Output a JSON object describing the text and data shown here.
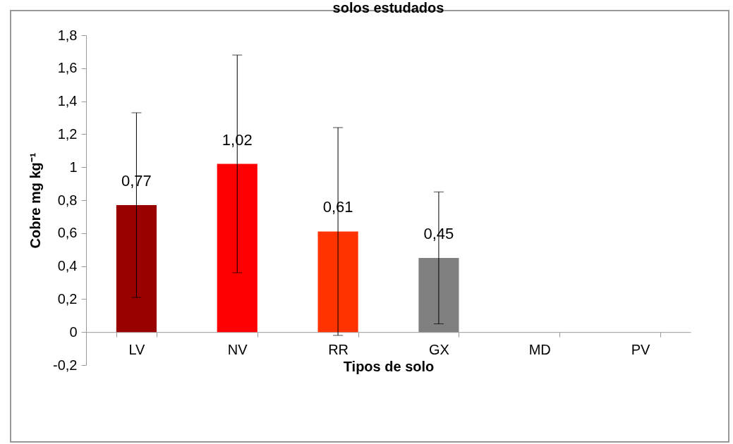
{
  "chart_data": {
    "type": "bar",
    "title": "solos estudados",
    "xlabel": "Tipos de solo",
    "ylabel": "Cobre mg kg⁻¹",
    "categories": [
      "LV",
      "NV",
      "RR",
      "GX",
      "MD",
      "PV"
    ],
    "values": [
      0.77,
      1.02,
      0.61,
      0.45,
      null,
      null
    ],
    "colors": [
      "#990000",
      "#ff0000",
      "#ff3300",
      "#808080",
      null,
      null
    ],
    "errors": [
      [
        0.21,
        1.33
      ],
      [
        0.36,
        1.68
      ],
      [
        -0.02,
        1.24
      ],
      [
        0.05,
        0.85
      ],
      null,
      null
    ],
    "value_labels": [
      "0,77",
      "1,02",
      "0,61",
      "0,45",
      null,
      null
    ],
    "ylim": [
      -0.2,
      1.8
    ],
    "yticks": [
      {
        "value": -0.2,
        "label": "-0,2"
      },
      0,
      {
        "value": 0.2,
        "label": "0,2"
      },
      {
        "value": 0.4,
        "label": "0,4"
      },
      {
        "value": 0.6,
        "label": "0,6"
      },
      {
        "value": 0.8,
        "label": "0,8"
      },
      1,
      {
        "value": 1.2,
        "label": "1,2"
      },
      {
        "value": 1.4,
        "label": "1,4"
      },
      {
        "value": 1.6,
        "label": "1,6"
      },
      {
        "value": 1.8,
        "label": "1,8"
      }
    ],
    "grid": false
  }
}
